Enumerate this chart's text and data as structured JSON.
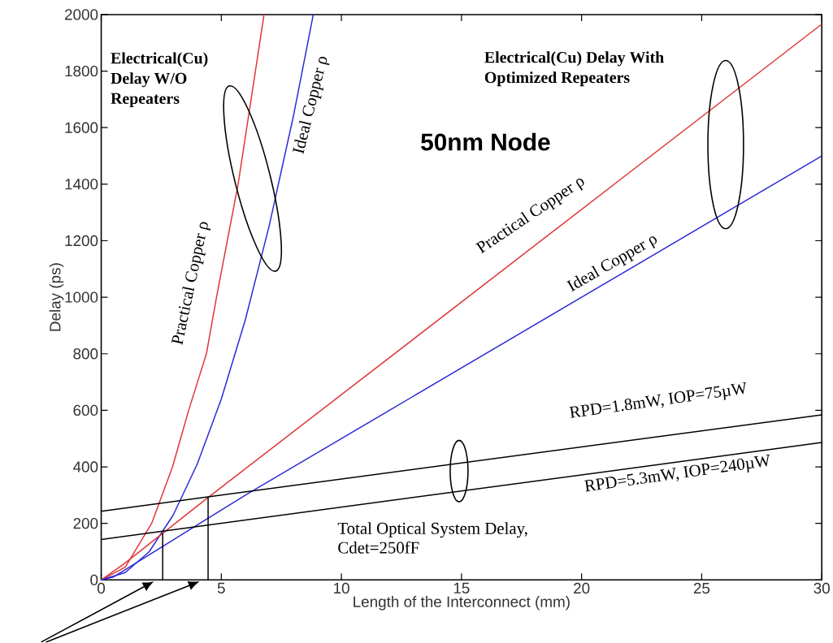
{
  "chart_data": {
    "type": "line",
    "xlabel": "Length of the Interconnect (mm)",
    "ylabel": "Delay (ps)",
    "xlim": [
      0,
      30
    ],
    "ylim": [
      0,
      2000
    ],
    "xticks": [
      0,
      5,
      10,
      15,
      20,
      25,
      30
    ],
    "yticks": [
      0,
      200,
      400,
      600,
      800,
      1000,
      1200,
      1400,
      1600,
      1800,
      2000
    ],
    "grid": false,
    "marker": "none",
    "line_style": "solid",
    "series": [
      {
        "color": "#e03535",
        "x": [
          0,
          1,
          2.1,
          2.97,
          3.64,
          4.38,
          4.8,
          5.7,
          6.78
        ],
        "values": [
          0,
          45,
          200,
          400,
          600,
          800,
          1000,
          1400,
          2000
        ]
      },
      {
        "color": "#2a2ad8",
        "x": [
          0,
          1,
          2,
          3,
          4,
          5,
          6,
          7,
          8,
          8.83
        ],
        "values": [
          0,
          26,
          100,
          230,
          410,
          640,
          920,
          1255,
          1640,
          2000
        ]
      },
      {
        "color": "#e03535",
        "x": [
          0,
          1,
          4.5,
          30
        ],
        "values": [
          0,
          60,
          295,
          1966
        ]
      },
      {
        "color": "#2a2ad8",
        "x": [
          0,
          0.5,
          6.1,
          30
        ],
        "values": [
          0,
          10,
          305,
          1500
        ]
      },
      {
        "color": "#000000",
        "x": [
          0,
          30
        ],
        "values": [
          243,
          584
        ]
      },
      {
        "color": "#000000",
        "x": [
          0,
          30
        ],
        "values": [
          143,
          486
        ]
      },
      {
        "color": "#000000",
        "x": [
          2.56,
          2.56
        ],
        "values": [
          0,
          166
        ]
      },
      {
        "color": "#000000",
        "x": [
          4.45,
          4.45
        ],
        "values": [
          0,
          292
        ]
      }
    ],
    "annotations": [
      "Electrical(Cu) Delay W/O Repeaters",
      "Ideal Copper ρ",
      "Practical Copper ρ",
      "50nm Node",
      "Electrical(Cu) Delay With Optimized Repeaters",
      "Practical Copper ρ",
      "Ideal Copper ρ",
      "RPD=1.8mW, IOP=75µW",
      "RPD=5.3mW, IOP=240µW",
      "Total Optical System Delay, Cdet=250fF"
    ]
  }
}
